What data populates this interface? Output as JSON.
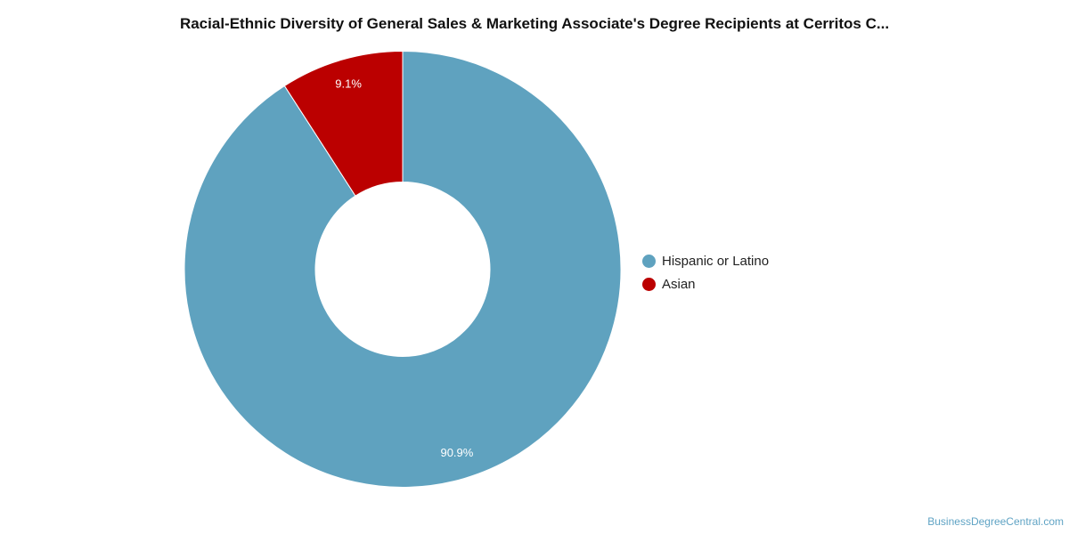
{
  "chart_data": {
    "type": "pie",
    "donut": true,
    "title": "Racial-Ethnic Diversity of General Sales & Marketing Associate's Degree Recipients at Cerritos C...",
    "series": [
      {
        "name": "Hispanic or Latino",
        "value": 90.9,
        "label": "90.9%",
        "color": "#5fa2bf"
      },
      {
        "name": "Asian",
        "value": 9.1,
        "label": "9.1%",
        "color": "#bb0000"
      }
    ],
    "legend_position": "right"
  },
  "footer": {
    "source": "BusinessDegreeCentral.com"
  }
}
